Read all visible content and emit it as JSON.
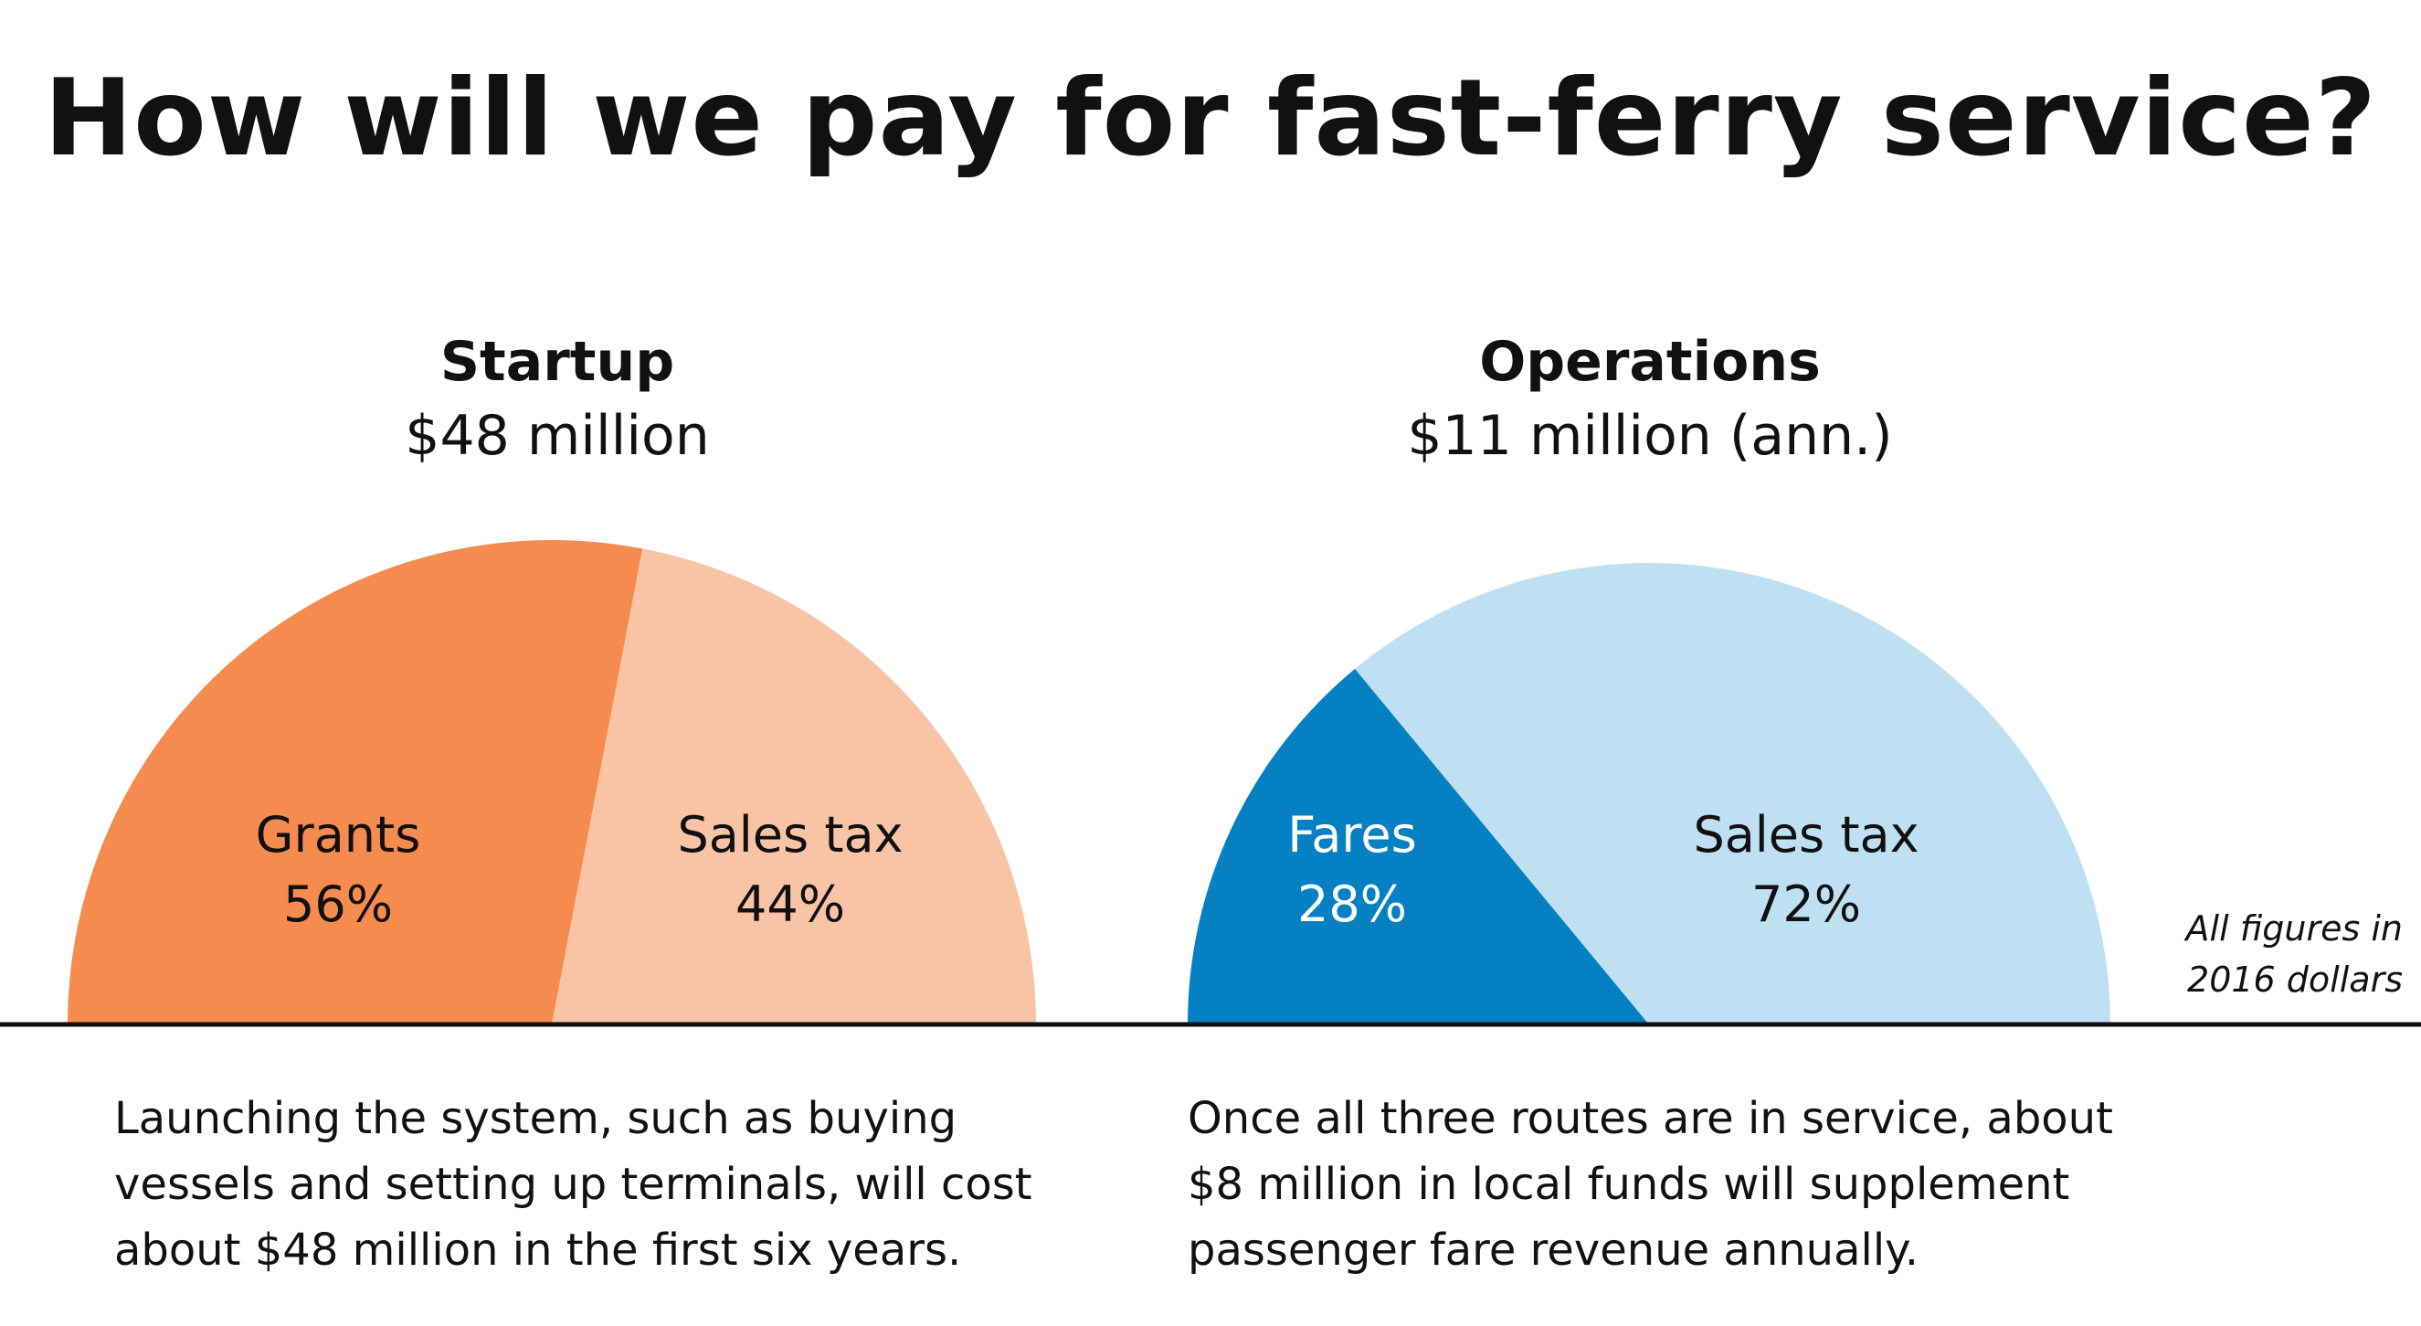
{
  "title": "How will we pay for fast-ferry service?",
  "note_lines": [
    "All figures in",
    "2016 dollars"
  ],
  "colors": {
    "grants": "#F58B4F",
    "sales_tax_startup": "#F9C3A6",
    "fares": "#0580C2",
    "sales_tax_operations": "#BFDFF3",
    "baseline": "#111111"
  },
  "chart_data": [
    {
      "type": "pie",
      "title": "Startup",
      "subtitle": "$48 million",
      "shape": "half-donut",
      "categories": [
        "Grants",
        "Sales tax"
      ],
      "values": [
        56,
        44
      ],
      "value_labels": [
        "56%",
        "44%"
      ],
      "colors": [
        "#F58B4F",
        "#F9C3A6"
      ],
      "label_colors": [
        "#111111",
        "#111111"
      ]
    },
    {
      "type": "pie",
      "title": "Operations",
      "subtitle": "$11 million (ann.)",
      "shape": "half-donut",
      "categories": [
        "Fares",
        "Sales tax"
      ],
      "values": [
        28,
        72
      ],
      "value_labels": [
        "28%",
        "72%"
      ],
      "colors": [
        "#0580C2",
        "#BFDFF3"
      ],
      "label_colors": [
        "#ffffff",
        "#111111"
      ]
    }
  ],
  "descriptions": {
    "startup": [
      "Launching the system, such as buying",
      "vessels and setting up terminals, will cost",
      "about $48 million in the first six years."
    ],
    "operations": [
      "Once all three routes are in service, about",
      "$8 million in local funds will supplement",
      "passenger fare revenue annually."
    ]
  }
}
